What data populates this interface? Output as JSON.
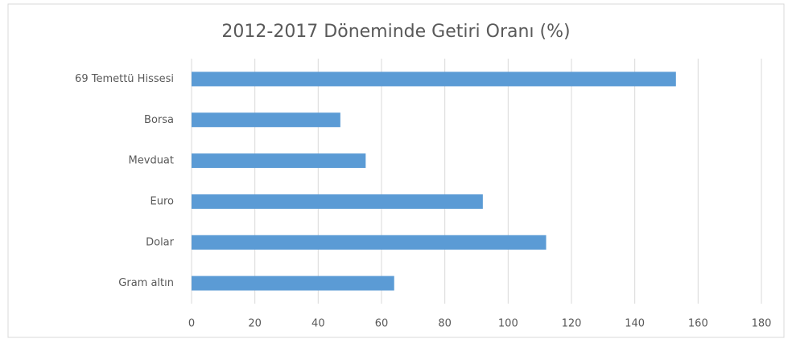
{
  "chart_data": {
    "type": "hbar",
    "title": "2012-2017 Döneminde Getiri Oranı (%)",
    "categories": [
      "69 Temettü Hissesi",
      "Borsa",
      "Mevduat",
      "Euro",
      "Dolar",
      "Gram altın"
    ],
    "values": [
      153,
      47,
      55,
      92,
      112,
      64
    ],
    "color": "#5b9bd5",
    "xlim": [
      0,
      180
    ],
    "xticks": [
      0,
      20,
      40,
      60,
      80,
      100,
      120,
      140,
      160,
      180
    ],
    "grid": true
  }
}
